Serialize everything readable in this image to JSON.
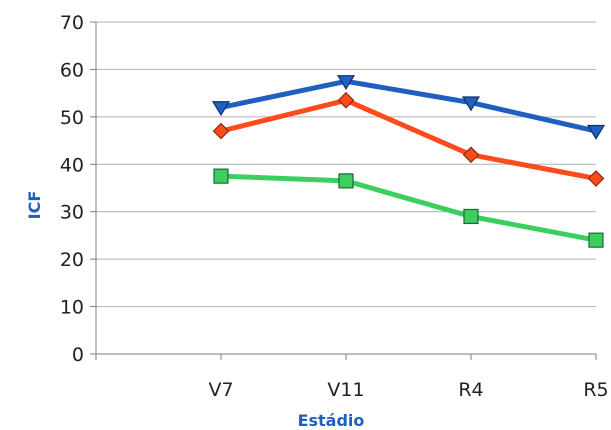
{
  "chart_data": {
    "type": "line",
    "title": "",
    "xlabel": "Estádio",
    "ylabel": "ICF",
    "categories": [
      "V7",
      "V11",
      "R4",
      "R5"
    ],
    "ylim": [
      0,
      70
    ],
    "yticks": [
      "0",
      "10",
      "20",
      "30",
      "40",
      "50",
      "60",
      "70"
    ],
    "grid": true,
    "series": [
      {
        "values": [
          52,
          57.5,
          53,
          47
        ],
        "color": "#1f5fbf",
        "marker": "triangle-down"
      },
      {
        "values": [
          47,
          53.5,
          42,
          37
        ],
        "color": "#ff4a1c",
        "marker": "diamond"
      },
      {
        "values": [
          37.5,
          36.5,
          29,
          24
        ],
        "color": "#3ccf5f",
        "marker": "square"
      }
    ],
    "colors": {
      "axis_title": "#1f5fbf",
      "grid": "#b0b0b0",
      "axis": "#7f7f7f"
    }
  }
}
